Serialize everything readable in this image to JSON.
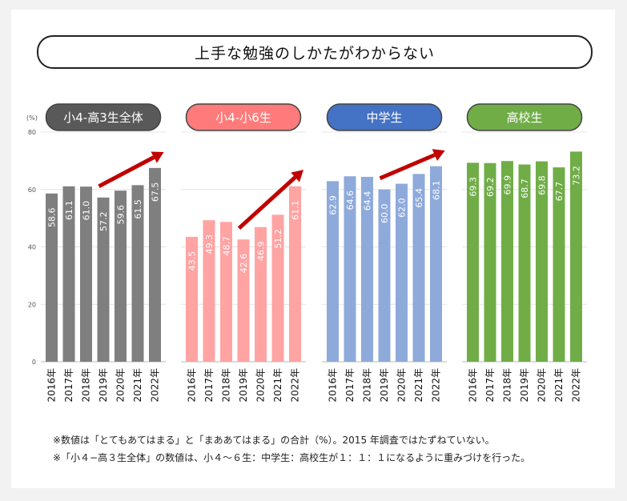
{
  "title": "上手な勉強のしかたがわからない",
  "notes": [
    "※数値は「とてもあてはまる」と「まああてはまる」の合計（%）。2015 年調査ではたずねていない。",
    "※「小４−高３生全体」の数値は、小４〜６生：中学生：高校生が１：１：１になるように重みづけを行った。"
  ],
  "chart_data": [
    {
      "type": "bar",
      "title": "小4-高3生全体",
      "color": "#7f7f7f",
      "header_color": "#595959",
      "trend_arrow": true,
      "ylabel": "(%)",
      "ylim": [
        0,
        80
      ],
      "yticks": [
        "0",
        "20",
        "40",
        "60",
        "80"
      ],
      "categories": [
        "2016年",
        "2017年",
        "2018年",
        "2019年",
        "2020年",
        "2021年",
        "2022年"
      ],
      "values": [
        58.6,
        61.1,
        61.0,
        57.2,
        59.6,
        61.5,
        67.5
      ],
      "value_labels": [
        "58.6",
        "61.1",
        "61.0",
        "57.2",
        "59.6",
        "61.5",
        "67.5"
      ]
    },
    {
      "type": "bar",
      "title": "小4-小6生",
      "color": "#ffa3a3",
      "header_color": "#ff7b7b",
      "trend_arrow": true,
      "ylim": [
        0,
        80
      ],
      "categories": [
        "2016年",
        "2017年",
        "2018年",
        "2019年",
        "2020年",
        "2021年",
        "2022年"
      ],
      "values": [
        43.5,
        49.3,
        48.7,
        42.6,
        46.9,
        51.2,
        61.1
      ],
      "value_labels": [
        "43.5",
        "49.3",
        "48.7",
        "42.6",
        "46.9",
        "51.2",
        "61.1"
      ]
    },
    {
      "type": "bar",
      "title": "中学生",
      "color": "#8eaadb",
      "header_color": "#4472c4",
      "trend_arrow": true,
      "ylim": [
        0,
        80
      ],
      "categories": [
        "2016年",
        "2017年",
        "2018年",
        "2019年",
        "2020年",
        "2021年",
        "2022年"
      ],
      "values": [
        62.9,
        64.6,
        64.4,
        60.0,
        62.0,
        65.4,
        68.1
      ],
      "value_labels": [
        "62.9",
        "64.6",
        "64.4",
        "60.0",
        "62.0",
        "65.4",
        "68.1"
      ]
    },
    {
      "type": "bar",
      "title": "高校生",
      "color": "#70ad47",
      "header_color": "#70ad47",
      "trend_arrow": false,
      "ylim": [
        0,
        80
      ],
      "categories": [
        "2016年",
        "2017年",
        "2018年",
        "2019年",
        "2020年",
        "2021年",
        "2022年"
      ],
      "values": [
        69.3,
        69.2,
        69.9,
        68.7,
        69.8,
        67.7,
        73.2
      ],
      "value_labels": [
        "69.3",
        "69.2",
        "69.9",
        "68.7",
        "69.8",
        "67.7",
        "73.2"
      ]
    }
  ]
}
